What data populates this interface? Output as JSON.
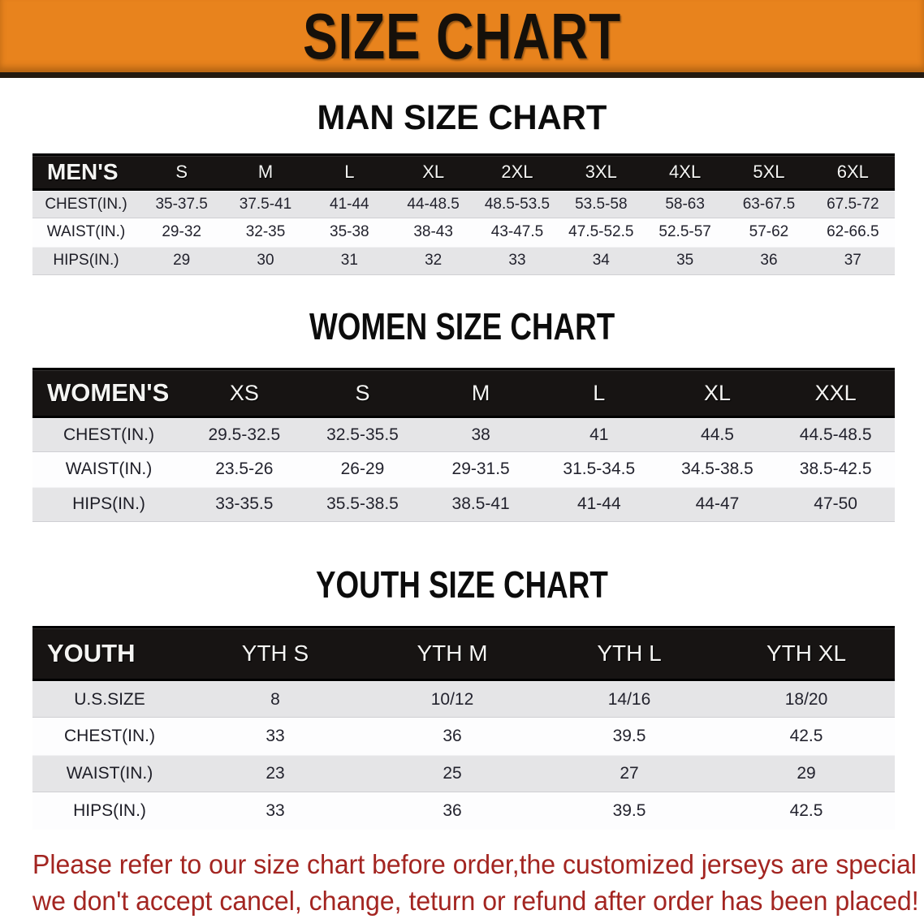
{
  "banner": {
    "title": "SIZE CHART",
    "background": "#E8831D"
  },
  "men": {
    "heading": "MAN SIZE CHART",
    "table": {
      "label": "MEN'S",
      "columns": [
        "S",
        "M",
        "L",
        "XL",
        "2XL",
        "3XL",
        "4XL",
        "5XL",
        "6XL"
      ],
      "rows": [
        {
          "label": "CHEST(IN.)",
          "values": [
            "35-37.5",
            "37.5-41",
            "41-44",
            "44-48.5",
            "48.5-53.5",
            "53.5-58",
            "58-63",
            "63-67.5",
            "67.5-72"
          ]
        },
        {
          "label": "WAIST(IN.)",
          "values": [
            "29-32",
            "32-35",
            "35-38",
            "38-43",
            "43-47.5",
            "47.5-52.5",
            "52.5-57",
            "57-62",
            "62-66.5"
          ]
        },
        {
          "label": "HIPS(IN.)",
          "values": [
            "29",
            "30",
            "31",
            "32",
            "33",
            "34",
            "35",
            "36",
            "37"
          ]
        }
      ]
    }
  },
  "women": {
    "heading": "WOMEN SIZE CHART",
    "table": {
      "label": "WOMEN'S",
      "columns": [
        "XS",
        "S",
        "M",
        "L",
        "XL",
        "XXL"
      ],
      "rows": [
        {
          "label": "CHEST(IN.)",
          "values": [
            "29.5-32.5",
            "32.5-35.5",
            "38",
            "41",
            "44.5",
            "44.5-48.5"
          ]
        },
        {
          "label": "WAIST(IN.)",
          "values": [
            "23.5-26",
            "26-29",
            "29-31.5",
            "31.5-34.5",
            "34.5-38.5",
            "38.5-42.5"
          ]
        },
        {
          "label": "HIPS(IN.)",
          "values": [
            "33-35.5",
            "35.5-38.5",
            "38.5-41",
            "41-44",
            "44-47",
            "47-50"
          ]
        }
      ]
    }
  },
  "youth": {
    "heading": "YOUTH SIZE CHART",
    "table": {
      "label": "YOUTH",
      "columns": [
        "YTH S",
        "YTH M",
        "YTH L",
        "YTH XL"
      ],
      "rows": [
        {
          "label": "U.S.SIZE",
          "values": [
            "8",
            "10/12",
            "14/16",
            "18/20"
          ]
        },
        {
          "label": "CHEST(IN.)",
          "values": [
            "33",
            "36",
            "39.5",
            "42.5"
          ]
        },
        {
          "label": "WAIST(IN.)",
          "values": [
            "23",
            "25",
            "27",
            "29"
          ]
        },
        {
          "label": "HIPS(IN.)",
          "values": [
            "33",
            "36",
            "39.5",
            "42.5"
          ]
        }
      ]
    }
  },
  "disclaimer": {
    "color": "#A32521",
    "lines": [
      "Please refer to our size chart before order,the customized jerseys are special products,",
      "we don't accept cancel, change, teturn or refund after order has been placed!"
    ]
  },
  "colors": {
    "banner_orange": "#E8831D",
    "header_band_black": "#171413",
    "stripe_gray": "#E5E5E7",
    "disclaimer_red": "#A32521"
  }
}
